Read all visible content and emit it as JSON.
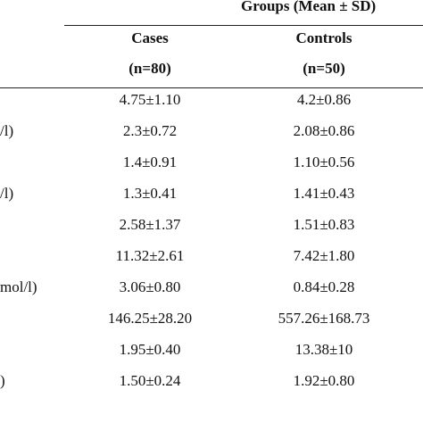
{
  "header": {
    "groups_title": "Groups (Mean ± SD)",
    "cases_label": "Cases",
    "cases_n": "(n=80)",
    "controls_label": "Controls",
    "controls_n": "(n=50)"
  },
  "rows": [
    {
      "label": "",
      "cases": "4.75±1.10",
      "controls": "4.2±0.86"
    },
    {
      "label": "/l)",
      "cases": "2.3±0.72",
      "controls": "2.08±0.86"
    },
    {
      "label": "",
      "cases": "1.4±0.91",
      "controls": "1.10±0.56"
    },
    {
      "label": "/l)",
      "cases": "1.3±0.41",
      "controls": "1.41±0.43"
    },
    {
      "label": "",
      "cases": "2.58±1.37",
      "controls": "1.51±0.83"
    },
    {
      "label": "",
      "cases": "11.32±2.61",
      "controls": "7.42±1.80"
    },
    {
      "label": "mol/l)",
      "cases": "3.06±0.80",
      "controls": "0.84±0.28"
    },
    {
      "label": "",
      "cases": "146.25±28.20",
      "controls": "557.26±168.73"
    },
    {
      "label": "",
      "cases": "1.95±0.40",
      "controls": "13.38±10"
    },
    {
      "label": ")",
      "cases": "1.50±0.24",
      "controls": "1.92±0.80"
    }
  ]
}
